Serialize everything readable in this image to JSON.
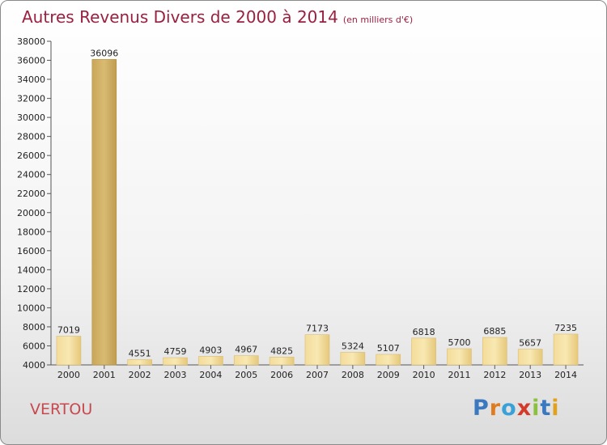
{
  "header": {
    "title": "Autres Revenus Divers de 2000 à 2014",
    "subtitle": "(en milliers d'€)"
  },
  "footer": {
    "commune": "VERTOU",
    "brand": "Proxiti",
    "brand_letters": [
      {
        "ch": "P",
        "color": "#3a78c0"
      },
      {
        "ch": "r",
        "color": "#e07b20"
      },
      {
        "ch": "o",
        "color": "#3aa0d8"
      },
      {
        "ch": "x",
        "color": "#d43a2a"
      },
      {
        "ch": "i",
        "color": "#8cc040"
      },
      {
        "ch": "t",
        "color": "#3a78c0"
      },
      {
        "ch": "i",
        "color": "#e0a020"
      }
    ]
  },
  "colors": {
    "bar_light": "#f8e6a8",
    "bar_dark": "#c9a85a",
    "title": "#9a2040"
  },
  "chart_data": {
    "type": "bar",
    "categories": [
      "2000",
      "2001",
      "2002",
      "2003",
      "2004",
      "2005",
      "2006",
      "2007",
      "2008",
      "2009",
      "2010",
      "2011",
      "2012",
      "2013",
      "2014"
    ],
    "values": [
      7019,
      36096,
      4551,
      4759,
      4903,
      4967,
      4825,
      7173,
      5324,
      5107,
      6818,
      5700,
      6885,
      5657,
      7235
    ],
    "highlight_index": 1,
    "ylim": [
      4000,
      38000
    ],
    "yticks": [
      4000,
      6000,
      8000,
      10000,
      12000,
      14000,
      16000,
      18000,
      20000,
      22000,
      24000,
      26000,
      28000,
      30000,
      32000,
      34000,
      36000,
      38000
    ],
    "grid": "none",
    "xlabel": "",
    "ylabel": ""
  }
}
